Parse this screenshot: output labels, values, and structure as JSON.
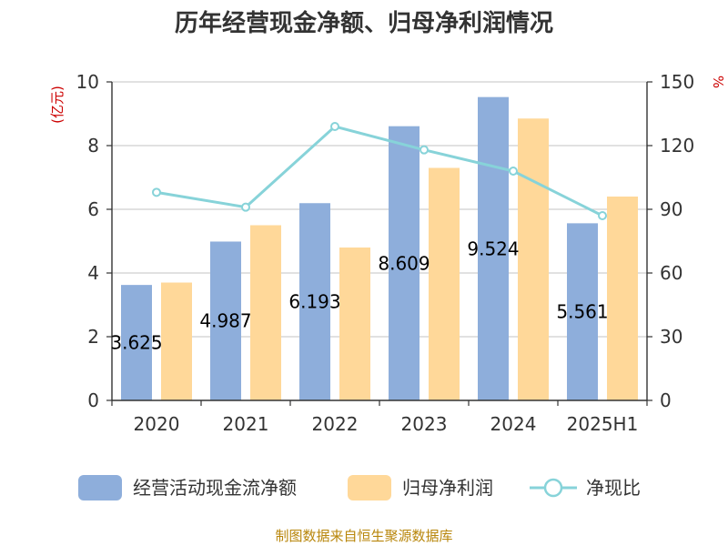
{
  "chart_data": {
    "type": "bar",
    "title": "历年经营现金净额、归母净利润情况",
    "categories": [
      "2020",
      "2021",
      "2022",
      "2023",
      "2024",
      "2025H1"
    ],
    "left_axis": {
      "unit": "(亿元)",
      "ylim": [
        0,
        10
      ],
      "ticks": [
        "0",
        "2",
        "4",
        "6",
        "8",
        "10"
      ]
    },
    "right_axis": {
      "unit": "%",
      "ylim": [
        0,
        150
      ],
      "ticks": [
        "0",
        "30",
        "60",
        "90",
        "120",
        "150"
      ]
    },
    "series": [
      {
        "name": "经营活动现金流净额",
        "kind": "bar",
        "axis": "left",
        "color": "#8eaedb",
        "values": [
          3.625,
          4.987,
          6.193,
          8.609,
          9.524,
          5.561
        ],
        "labels": [
          "3.625",
          "4.987",
          "6.193",
          "8.609",
          "9.524",
          "5.561"
        ]
      },
      {
        "name": "归母净利润",
        "kind": "bar",
        "axis": "left",
        "color": "#ffd899",
        "values": [
          3.7,
          5.5,
          4.8,
          7.3,
          8.85,
          6.4
        ]
      },
      {
        "name": "净现比",
        "kind": "line",
        "axis": "right",
        "color": "#87d3d9",
        "values": [
          98,
          91,
          129,
          118,
          108,
          87
        ]
      }
    ],
    "grid": true,
    "legend_position": "bottom"
  },
  "source": "制图数据来自恒生聚源数据库"
}
